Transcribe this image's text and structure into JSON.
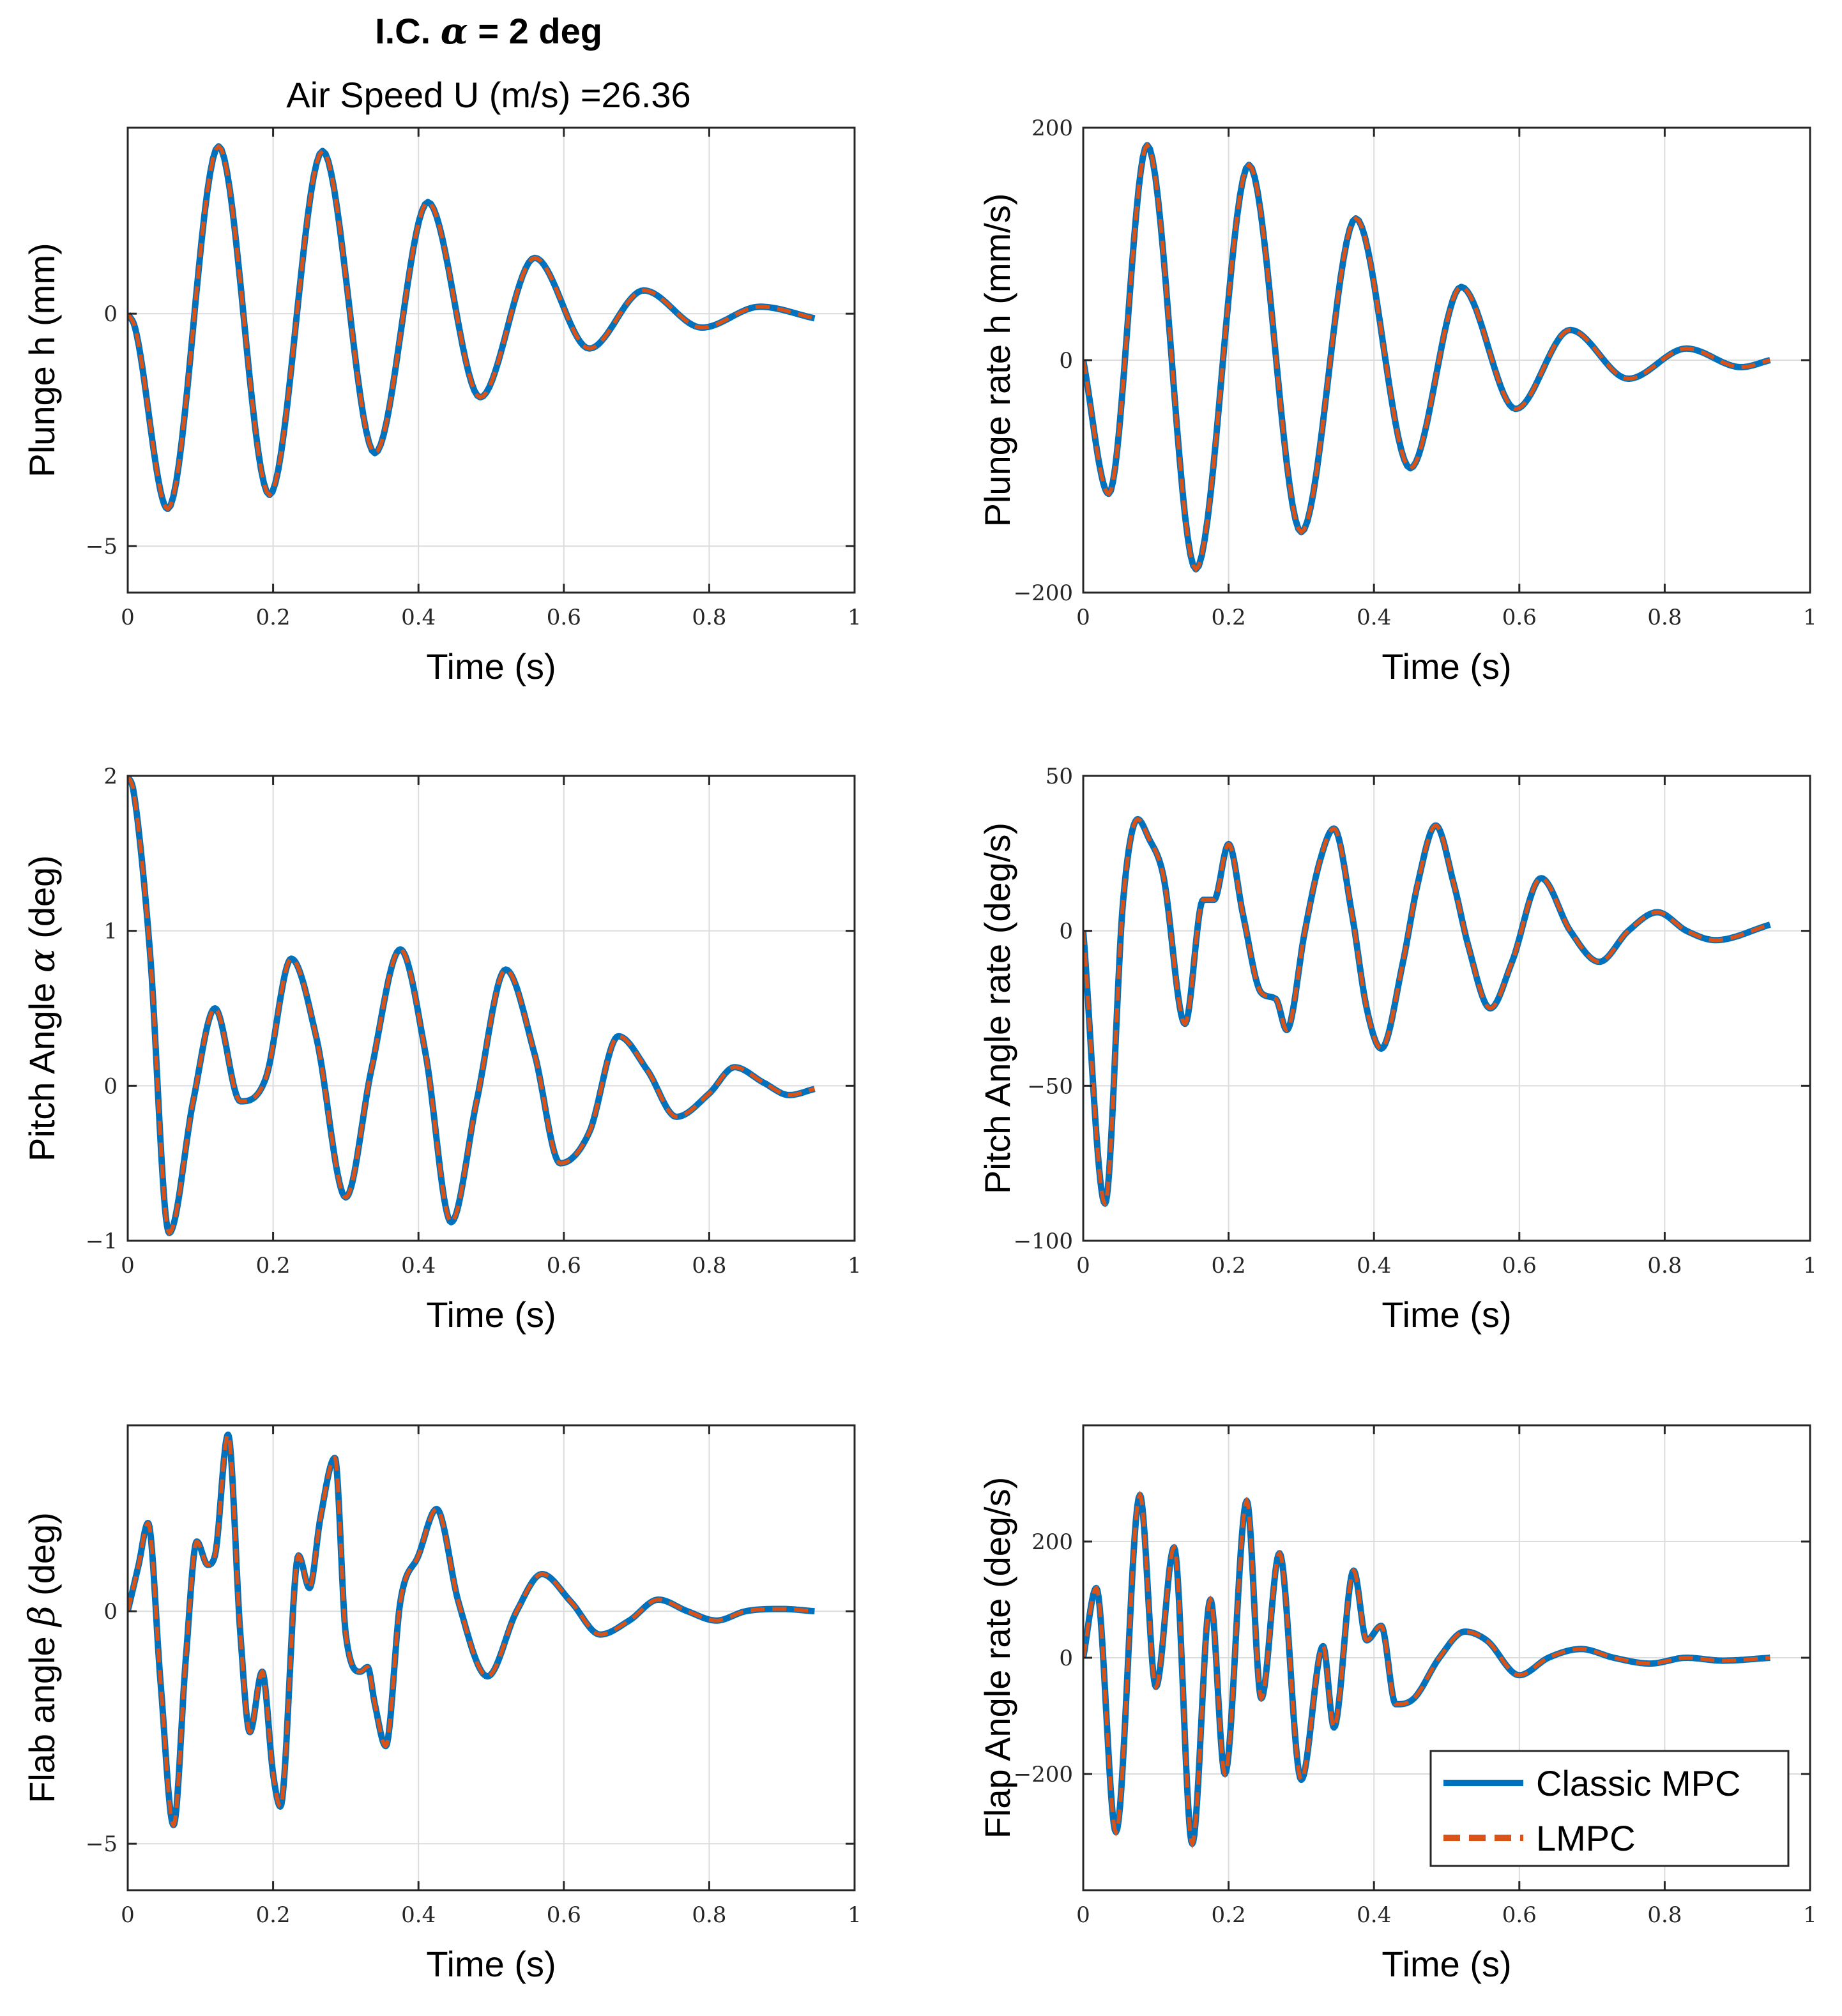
{
  "figure": {
    "title_line1_prefix": "I.C. ",
    "title_line1_symbol": "α",
    "title_line1_suffix": " = 2 deg",
    "title_line2": "Air Speed U (m/s) =26.36"
  },
  "colors": {
    "classic": "#0072BD",
    "lmpc": "#D95319",
    "grid": "#dcdcdc",
    "axis": "#262626"
  },
  "legend": {
    "items": [
      "Classic MPC",
      "LMPC"
    ]
  },
  "chart_data": [
    {
      "type": "line",
      "id": "plunge",
      "ylabel_prefix": "Plunge h (mm)",
      "ylabel_symbol": "",
      "ylabel_suffix": "",
      "xlabel": "Time (s)",
      "xlim": [
        0,
        1
      ],
      "ylim": [
        -6,
        4
      ],
      "xticks": [
        0,
        0.2,
        0.4,
        0.6,
        0.8,
        1
      ],
      "xtick_labels": [
        "0",
        "0.2",
        "0.4",
        "0.6",
        "0.8",
        "1"
      ],
      "yticks": [
        -5,
        0
      ],
      "ytick_labels": [
        "−5",
        "0"
      ],
      "grid": true,
      "keypoints": {
        "x": [
          0,
          0.01,
          0.055,
          0.125,
          0.195,
          0.268,
          0.34,
          0.413,
          0.485,
          0.56,
          0.635,
          0.71,
          0.79,
          0.87,
          0.945
        ],
        "y": [
          0,
          -0.3,
          -4.2,
          3.6,
          -3.9,
          3.5,
          -3.0,
          2.4,
          -1.8,
          1.2,
          -0.75,
          0.5,
          -0.3,
          0.15,
          -0.1
        ]
      },
      "series": [
        "Classic MPC",
        "LMPC"
      ]
    },
    {
      "type": "line",
      "id": "plunge_rate",
      "ylabel_prefix": "Plunge rate h (mm/s)",
      "ylabel_symbol": "",
      "ylabel_suffix": "",
      "xlabel": "Time (s)",
      "xlim": [
        0,
        1
      ],
      "ylim": [
        -200,
        200
      ],
      "xticks": [
        0,
        0.2,
        0.4,
        0.6,
        0.8,
        1
      ],
      "xtick_labels": [
        "0",
        "0.2",
        "0.4",
        "0.6",
        "0.8",
        "1"
      ],
      "yticks": [
        -200,
        0,
        200
      ],
      "ytick_labels": [
        "−200",
        "0",
        "200"
      ],
      "grid": true,
      "keypoints": {
        "x": [
          0,
          0.035,
          0.088,
          0.155,
          0.228,
          0.3,
          0.375,
          0.45,
          0.52,
          0.595,
          0.67,
          0.75,
          0.83,
          0.905,
          0.945
        ],
        "y": [
          0,
          -115,
          185,
          -180,
          168,
          -148,
          122,
          -93,
          63,
          -42,
          26,
          -16,
          10,
          -6,
          0
        ]
      },
      "series": [
        "Classic MPC",
        "LMPC"
      ]
    },
    {
      "type": "line",
      "id": "pitch",
      "ylabel_prefix": "Pitch Angle ",
      "ylabel_symbol": "α",
      "ylabel_suffix": " (deg)",
      "xlabel": "Time (s)",
      "xlim": [
        0,
        1
      ],
      "ylim": [
        -1,
        2
      ],
      "xticks": [
        0,
        0.2,
        0.4,
        0.6,
        0.8,
        1
      ],
      "xtick_labels": [
        "0",
        "0.2",
        "0.4",
        "0.6",
        "0.8",
        "1"
      ],
      "yticks": [
        -1,
        0,
        1,
        2
      ],
      "ytick_labels": [
        "−1",
        "0",
        "1",
        "2"
      ],
      "grid": true,
      "keypoints": {
        "x": [
          0,
          0.008,
          0.03,
          0.057,
          0.09,
          0.12,
          0.155,
          0.19,
          0.225,
          0.26,
          0.3,
          0.335,
          0.375,
          0.41,
          0.445,
          0.48,
          0.52,
          0.56,
          0.595,
          0.635,
          0.675,
          0.715,
          0.755,
          0.8,
          0.835,
          0.875,
          0.91,
          0.945
        ],
        "y": [
          2,
          1.9,
          0.9,
          -0.95,
          -0.1,
          0.5,
          -0.1,
          0.05,
          0.82,
          0.3,
          -0.72,
          0.1,
          0.88,
          0.2,
          -0.88,
          -0.1,
          0.75,
          0.2,
          -0.5,
          -0.3,
          0.32,
          0.1,
          -0.2,
          -0.05,
          0.12,
          0.02,
          -0.06,
          -0.02
        ]
      },
      "series": [
        "Classic MPC",
        "LMPC"
      ]
    },
    {
      "type": "line",
      "id": "pitch_rate",
      "ylabel_prefix": "Pitch Angle rate (deg/s)",
      "ylabel_symbol": "",
      "ylabel_suffix": "",
      "xlabel": "Time (s)",
      "xlim": [
        0,
        1
      ],
      "ylim": [
        -100,
        50
      ],
      "xticks": [
        0,
        0.2,
        0.4,
        0.6,
        0.8,
        1
      ],
      "xtick_labels": [
        "0",
        "0.2",
        "0.4",
        "0.6",
        "0.8",
        "1"
      ],
      "yticks": [
        -100,
        -50,
        0,
        50
      ],
      "ytick_labels": [
        "−100",
        "−50",
        "0",
        "50"
      ],
      "grid": true,
      "keypoints": {
        "x": [
          0,
          0.03,
          0.055,
          0.075,
          0.09,
          0.11,
          0.14,
          0.165,
          0.18,
          0.2,
          0.22,
          0.245,
          0.265,
          0.28,
          0.305,
          0.325,
          0.345,
          0.37,
          0.39,
          0.41,
          0.44,
          0.46,
          0.485,
          0.51,
          0.53,
          0.56,
          0.59,
          0.63,
          0.67,
          0.71,
          0.75,
          0.79,
          0.83,
          0.87,
          0.945
        ],
        "y": [
          0,
          -88,
          10,
          36,
          30,
          18,
          -30,
          10,
          10,
          28,
          5,
          -20,
          -22,
          -32,
          0,
          22,
          33,
          5,
          -25,
          -38,
          -10,
          15,
          34,
          15,
          -5,
          -25,
          -10,
          17,
          0,
          -10,
          0,
          6,
          0,
          -3,
          2
        ]
      },
      "series": [
        "Classic MPC",
        "LMPC"
      ]
    },
    {
      "type": "line",
      "id": "flap",
      "ylabel_prefix": "Flab angle ",
      "ylabel_symbol": "β",
      "ylabel_suffix": " (deg)",
      "xlabel": "Time (s)",
      "xlim": [
        0,
        1
      ],
      "ylim": [
        -6,
        4
      ],
      "xticks": [
        0,
        0.2,
        0.4,
        0.6,
        0.8,
        1
      ],
      "xtick_labels": [
        "0",
        "0.2",
        "0.4",
        "0.6",
        "0.8",
        "1"
      ],
      "yticks": [
        -5,
        0
      ],
      "ytick_labels": [
        "−5",
        "0"
      ],
      "grid": true,
      "keypoints": {
        "x": [
          0,
          0.015,
          0.028,
          0.045,
          0.063,
          0.08,
          0.095,
          0.11,
          0.12,
          0.138,
          0.155,
          0.168,
          0.185,
          0.2,
          0.21,
          0.235,
          0.25,
          0.265,
          0.285,
          0.3,
          0.32,
          0.33,
          0.34,
          0.355,
          0.375,
          0.4,
          0.425,
          0.455,
          0.495,
          0.535,
          0.57,
          0.61,
          0.65,
          0.69,
          0.73,
          0.77,
          0.81,
          0.85,
          0.9,
          0.945
        ],
        "y": [
          0,
          1.0,
          1.9,
          -1.5,
          -4.6,
          -1.0,
          1.5,
          1.0,
          1.2,
          3.8,
          -0.5,
          -2.6,
          -1.3,
          -3.5,
          -4.2,
          1.2,
          0.5,
          2.0,
          3.3,
          -0.5,
          -1.3,
          -1.2,
          -2.0,
          -2.9,
          0.2,
          1.2,
          2.2,
          0.2,
          -1.4,
          0.0,
          0.8,
          0.2,
          -0.5,
          -0.2,
          0.25,
          0.0,
          -0.2,
          0.0,
          0.05,
          0.0
        ]
      },
      "series": [
        "Classic MPC",
        "LMPC"
      ]
    },
    {
      "type": "line",
      "id": "flap_rate",
      "ylabel_prefix": "Flap Angle rate (deg/s)",
      "ylabel_symbol": "",
      "ylabel_suffix": "",
      "xlabel": "Time (s)",
      "xlim": [
        0,
        1
      ],
      "ylim": [
        -400,
        400
      ],
      "xticks": [
        0,
        0.2,
        0.4,
        0.6,
        0.8,
        1
      ],
      "xtick_labels": [
        "0",
        "0.2",
        "0.4",
        "0.6",
        "0.8",
        "1"
      ],
      "yticks": [
        -200,
        0,
        200
      ],
      "ytick_labels": [
        "−200",
        "0",
        "200"
      ],
      "grid": true,
      "keypoints": {
        "x": [
          0,
          0.018,
          0.045,
          0.078,
          0.1,
          0.125,
          0.15,
          0.175,
          0.195,
          0.225,
          0.245,
          0.27,
          0.3,
          0.33,
          0.345,
          0.372,
          0.39,
          0.41,
          0.43,
          0.455,
          0.49,
          0.525,
          0.555,
          0.6,
          0.64,
          0.685,
          0.73,
          0.78,
          0.83,
          0.88,
          0.945
        ],
        "y": [
          0,
          120,
          -300,
          280,
          -50,
          190,
          -320,
          100,
          -200,
          270,
          -70,
          180,
          -210,
          20,
          -120,
          150,
          30,
          55,
          -80,
          -70,
          0,
          45,
          30,
          -30,
          0,
          15,
          0,
          -10,
          0,
          -5,
          0
        ]
      },
      "series": [
        "Classic MPC",
        "LMPC"
      ]
    }
  ]
}
